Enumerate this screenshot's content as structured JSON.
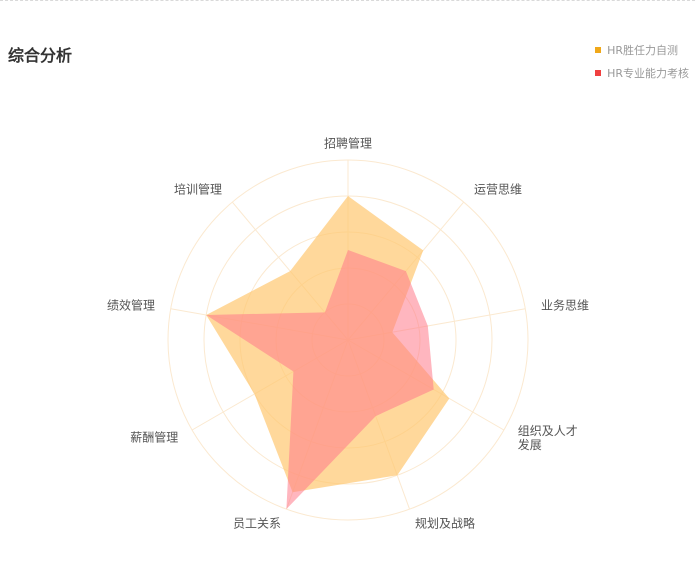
{
  "title": "综合分析",
  "legend": [
    {
      "name": "HR胜任力自测",
      "color": "#f0a81a"
    },
    {
      "name": "HR专业能力考核",
      "color": "#f04040"
    }
  ],
  "chart_data": {
    "type": "radar",
    "title": "综合分析",
    "max": 100,
    "indicators": [
      "招聘管理",
      "运营思维",
      "业务思维",
      "组织及人才发展",
      "规划及战略",
      "员工关系",
      "薪酬管理",
      "绩效管理",
      "培训管理"
    ],
    "series": [
      {
        "name": "HR胜任力自测",
        "color": "#ffc870",
        "values": [
          80,
          65,
          25,
          65,
          80,
          90,
          60,
          80,
          50
        ]
      },
      {
        "name": "HR专业能力考核",
        "color": "#ff7a8a",
        "values": [
          50,
          50,
          45,
          55,
          45,
          100,
          35,
          80,
          20
        ]
      }
    ],
    "split_rings": 5,
    "ring_color": "#fbe9d0"
  }
}
